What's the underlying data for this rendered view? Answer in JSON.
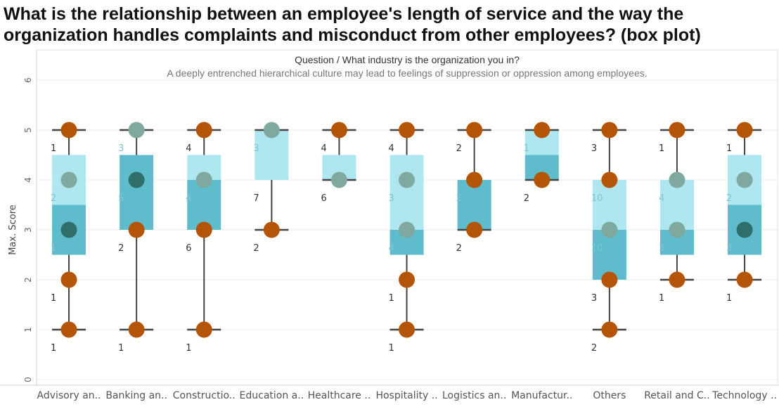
{
  "title": "What is the relationship between an employee's length of service and the way the organization handles complaints and misconduct from other employees? (box plot)",
  "header": {
    "question_label": "Question",
    "separator": "/",
    "question": "What industry is the organization you in?",
    "subtitle": "A deeply entrenched hierarchical culture may lead to feelings of suppression or oppression among employees."
  },
  "colors": {
    "box_upper": "#aee7f0",
    "box_lower": "#5fbccc",
    "whisker": "#444444",
    "point": "#b35407",
    "light_point": "#7fa89e",
    "dark_point": "#2f6e6a",
    "grid": "#ececec",
    "count_dark": "#333333",
    "count_light": "#7fc4d2"
  },
  "chart_data": {
    "type": "box",
    "ylabel": "Max. Score",
    "ylim": [
      0,
      6
    ],
    "yticks": [
      0,
      1,
      2,
      3,
      4,
      5,
      6
    ],
    "categories": [
      {
        "label": "Advisory an..",
        "min": 1,
        "q1": 2.5,
        "median": 3.5,
        "q3": 4.5,
        "max": 5,
        "points": [
          {
            "y": 5,
            "c": "point"
          },
          {
            "y": 4,
            "c": "light_point"
          },
          {
            "y": 3,
            "c": "dark_point"
          },
          {
            "y": 2,
            "c": "point"
          },
          {
            "y": 1,
            "c": "point"
          }
        ],
        "counts": [
          {
            "y": 5,
            "n": "1",
            "c": "count_dark"
          },
          {
            "y": 4,
            "n": "2",
            "c": "count_light"
          },
          {
            "y": 3,
            "n": "1",
            "c": "count_light"
          },
          {
            "y": 2,
            "n": "1",
            "c": "count_dark"
          },
          {
            "y": 1,
            "n": "1",
            "c": "count_dark"
          }
        ]
      },
      {
        "label": "Banking an..",
        "min": 1,
        "q1": 3,
        "median": 4.5,
        "q3": 4.5,
        "max": 5,
        "points": [
          {
            "y": 5,
            "c": "light_point"
          },
          {
            "y": 4,
            "c": "dark_point"
          },
          {
            "y": 3,
            "c": "point"
          },
          {
            "y": 1,
            "c": "point"
          }
        ],
        "counts": [
          {
            "y": 5,
            "n": "3",
            "c": "count_light"
          },
          {
            "y": 4,
            "n": "5",
            "c": "count_light"
          },
          {
            "y": 3,
            "n": "2",
            "c": "count_dark"
          },
          {
            "y": 1,
            "n": "1",
            "c": "count_dark"
          }
        ]
      },
      {
        "label": "Constructio..",
        "min": 1,
        "q1": 3,
        "median": 4,
        "q3": 4.5,
        "max": 5,
        "points": [
          {
            "y": 5,
            "c": "point"
          },
          {
            "y": 4,
            "c": "light_point"
          },
          {
            "y": 3,
            "c": "point"
          },
          {
            "y": 1,
            "c": "point"
          }
        ],
        "counts": [
          {
            "y": 5,
            "n": "4",
            "c": "count_dark"
          },
          {
            "y": 4,
            "n": "4",
            "c": "count_light"
          },
          {
            "y": 3,
            "n": "6",
            "c": "count_dark"
          },
          {
            "y": 1,
            "n": "1",
            "c": "count_dark"
          }
        ]
      },
      {
        "label": "Education a..",
        "min": 3,
        "q1": 4,
        "median": 4,
        "q3": 5,
        "max": 5,
        "points": [
          {
            "y": 5,
            "c": "light_point"
          },
          {
            "y": 3,
            "c": "point"
          }
        ],
        "counts": [
          {
            "y": 5,
            "n": "3",
            "c": "count_light"
          },
          {
            "y": 4,
            "n": "7",
            "c": "count_dark"
          },
          {
            "y": 3,
            "n": "2",
            "c": "count_dark"
          }
        ]
      },
      {
        "label": "Healthcare ..",
        "min": 4,
        "q1": 4,
        "median": 4,
        "q3": 4.5,
        "max": 5,
        "points": [
          {
            "y": 5,
            "c": "point"
          },
          {
            "y": 4,
            "c": "light_point"
          }
        ],
        "counts": [
          {
            "y": 5,
            "n": "4",
            "c": "count_dark"
          },
          {
            "y": 4,
            "n": "6",
            "c": "count_dark"
          }
        ]
      },
      {
        "label": "Hospitality ..",
        "min": 1,
        "q1": 2.5,
        "median": 3,
        "q3": 4.5,
        "max": 5,
        "points": [
          {
            "y": 5,
            "c": "point"
          },
          {
            "y": 4,
            "c": "light_point"
          },
          {
            "y": 3,
            "c": "light_point"
          },
          {
            "y": 2,
            "c": "point"
          },
          {
            "y": 1,
            "c": "point"
          }
        ],
        "counts": [
          {
            "y": 5,
            "n": "4",
            "c": "count_dark"
          },
          {
            "y": 4,
            "n": "3",
            "c": "count_light"
          },
          {
            "y": 3,
            "n": "4",
            "c": "count_light"
          },
          {
            "y": 2,
            "n": "1",
            "c": "count_dark"
          },
          {
            "y": 1,
            "n": "1",
            "c": "count_dark"
          }
        ]
      },
      {
        "label": "Logistics an..",
        "min": 3,
        "q1": 3,
        "median": 4,
        "q3": 4,
        "max": 5,
        "points": [
          {
            "y": 5,
            "c": "point"
          },
          {
            "y": 4,
            "c": "point"
          },
          {
            "y": 3,
            "c": "point"
          }
        ],
        "counts": [
          {
            "y": 5,
            "n": "2",
            "c": "count_dark"
          },
          {
            "y": 4,
            "n": "2",
            "c": "count_light"
          },
          {
            "y": 3,
            "n": "2",
            "c": "count_dark"
          }
        ]
      },
      {
        "label": "Manufactur..",
        "min": 4,
        "q1": 4,
        "median": 4.5,
        "q3": 5,
        "max": 5,
        "points": [
          {
            "y": 5,
            "c": "point"
          },
          {
            "y": 4,
            "c": "point"
          }
        ],
        "counts": [
          {
            "y": 5,
            "n": "1",
            "c": "count_light"
          },
          {
            "y": 4,
            "n": "2",
            "c": "count_dark"
          }
        ]
      },
      {
        "label": "Others",
        "min": 1,
        "q1": 2,
        "median": 3,
        "q3": 4,
        "max": 5,
        "points": [
          {
            "y": 5,
            "c": "point"
          },
          {
            "y": 4,
            "c": "point"
          },
          {
            "y": 3,
            "c": "light_point"
          },
          {
            "y": 2,
            "c": "point"
          },
          {
            "y": 1,
            "c": "point"
          }
        ],
        "counts": [
          {
            "y": 5,
            "n": "3",
            "c": "count_dark"
          },
          {
            "y": 4,
            "n": "10",
            "c": "count_light"
          },
          {
            "y": 3,
            "n": "10",
            "c": "count_light"
          },
          {
            "y": 2,
            "n": "3",
            "c": "count_dark"
          },
          {
            "y": 1,
            "n": "2",
            "c": "count_dark"
          }
        ]
      },
      {
        "label": "Retail and C..",
        "min": 2,
        "q1": 2.5,
        "median": 3,
        "q3": 4,
        "max": 5,
        "points": [
          {
            "y": 5,
            "c": "point"
          },
          {
            "y": 4,
            "c": "light_point"
          },
          {
            "y": 3,
            "c": "light_point"
          },
          {
            "y": 2,
            "c": "point"
          }
        ],
        "counts": [
          {
            "y": 5,
            "n": "1",
            "c": "count_dark"
          },
          {
            "y": 4,
            "n": "4",
            "c": "count_light"
          },
          {
            "y": 3,
            "n": "3",
            "c": "count_light"
          },
          {
            "y": 2,
            "n": "1",
            "c": "count_dark"
          }
        ]
      },
      {
        "label": "Technology ..",
        "min": 2,
        "q1": 2.5,
        "median": 3.5,
        "q3": 4.5,
        "max": 5,
        "points": [
          {
            "y": 5,
            "c": "point"
          },
          {
            "y": 4,
            "c": "light_point"
          },
          {
            "y": 3,
            "c": "dark_point"
          },
          {
            "y": 2,
            "c": "point"
          }
        ],
        "counts": [
          {
            "y": 5,
            "n": "1",
            "c": "count_dark"
          },
          {
            "y": 4,
            "n": "2",
            "c": "count_light"
          },
          {
            "y": 3,
            "n": "3",
            "c": "count_light"
          },
          {
            "y": 2,
            "n": "1",
            "c": "count_dark"
          }
        ]
      }
    ]
  }
}
